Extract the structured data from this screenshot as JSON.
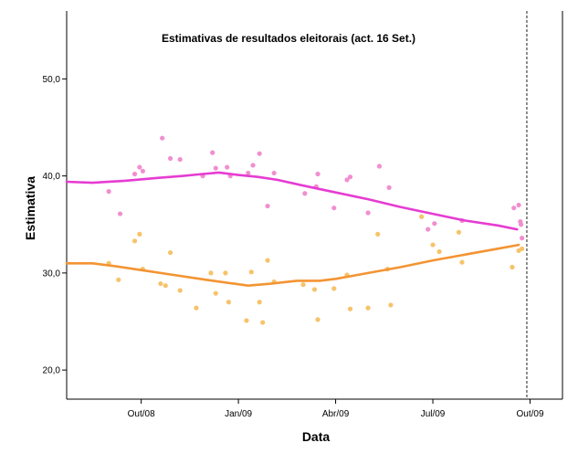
{
  "chart_data": {
    "type": "scatter",
    "title": "Estimativas de resultados eleitorais (act. 16 Set.)",
    "xlabel": "Data",
    "ylabel": "Estimativa",
    "x_domain_months": [
      6.7,
      22.0
    ],
    "ylim": [
      17.0,
      57.0
    ],
    "x_ticks": [
      {
        "label": "Out/08",
        "month": 9
      },
      {
        "label": "Jan/09",
        "month": 12
      },
      {
        "label": "Abr/09",
        "month": 15
      },
      {
        "label": "Jul/09",
        "month": 18
      },
      {
        "label": "Out/09",
        "month": 21
      }
    ],
    "y_ticks": [
      {
        "label": "20,0",
        "value": 20
      },
      {
        "label": "30,0",
        "value": 30
      },
      {
        "label": "40,0",
        "value": 40
      },
      {
        "label": "50,0",
        "value": 50
      }
    ],
    "reference_line_month": 20.9,
    "series": [
      {
        "name": "pink",
        "color": "#e63cd2",
        "point_color": "#f08fd0",
        "points": [
          [
            8.0,
            38.4
          ],
          [
            8.35,
            36.1
          ],
          [
            8.8,
            40.2
          ],
          [
            8.95,
            40.9
          ],
          [
            9.05,
            40.5
          ],
          [
            9.65,
            43.9
          ],
          [
            9.9,
            41.8
          ],
          [
            10.2,
            41.7
          ],
          [
            10.9,
            40.0
          ],
          [
            11.2,
            42.4
          ],
          [
            11.3,
            40.8
          ],
          [
            11.65,
            40.9
          ],
          [
            11.75,
            40.0
          ],
          [
            12.3,
            40.3
          ],
          [
            12.45,
            41.1
          ],
          [
            12.65,
            42.3
          ],
          [
            12.9,
            36.9
          ],
          [
            13.1,
            40.3
          ],
          [
            14.05,
            38.2
          ],
          [
            14.4,
            38.9
          ],
          [
            14.45,
            40.2
          ],
          [
            14.95,
            36.7
          ],
          [
            15.35,
            39.6
          ],
          [
            15.45,
            39.9
          ],
          [
            16.0,
            36.2
          ],
          [
            16.35,
            41.0
          ],
          [
            16.65,
            38.8
          ],
          [
            17.85,
            34.5
          ],
          [
            18.05,
            35.1
          ],
          [
            18.9,
            35.4
          ],
          [
            20.5,
            36.7
          ],
          [
            20.65,
            37.0
          ],
          [
            20.7,
            35.3
          ],
          [
            20.72,
            35.0
          ],
          [
            20.75,
            33.6
          ]
        ],
        "trend": [
          [
            6.7,
            39.4
          ],
          [
            7.5,
            39.3
          ],
          [
            8.5,
            39.5
          ],
          [
            9.5,
            39.8
          ],
          [
            10.3,
            40.0
          ],
          [
            10.9,
            40.2
          ],
          [
            11.4,
            40.35
          ],
          [
            12.0,
            40.1
          ],
          [
            12.6,
            39.9
          ],
          [
            13.2,
            39.6
          ],
          [
            14.0,
            39.0
          ],
          [
            15.0,
            38.3
          ],
          [
            16.0,
            37.6
          ],
          [
            17.0,
            36.8
          ],
          [
            18.0,
            36.1
          ],
          [
            19.0,
            35.4
          ],
          [
            20.0,
            34.9
          ],
          [
            20.6,
            34.5
          ]
        ]
      },
      {
        "name": "orange",
        "color": "#f39433",
        "point_color": "#f6c36a",
        "points": [
          [
            8.0,
            31.0
          ],
          [
            8.3,
            29.3
          ],
          [
            8.8,
            33.3
          ],
          [
            8.95,
            34.0
          ],
          [
            9.05,
            30.4
          ],
          [
            9.6,
            28.9
          ],
          [
            9.75,
            28.7
          ],
          [
            9.9,
            32.1
          ],
          [
            10.2,
            28.2
          ],
          [
            10.7,
            26.4
          ],
          [
            11.15,
            30.0
          ],
          [
            11.3,
            27.9
          ],
          [
            11.6,
            30.0
          ],
          [
            11.7,
            27.0
          ],
          [
            12.25,
            25.1
          ],
          [
            12.4,
            30.1
          ],
          [
            12.65,
            27.0
          ],
          [
            12.75,
            24.9
          ],
          [
            12.9,
            31.3
          ],
          [
            13.1,
            29.1
          ],
          [
            14.0,
            28.8
          ],
          [
            14.35,
            28.3
          ],
          [
            14.45,
            25.2
          ],
          [
            14.95,
            28.4
          ],
          [
            15.35,
            29.8
          ],
          [
            15.45,
            26.3
          ],
          [
            16.0,
            26.4
          ],
          [
            16.3,
            34.0
          ],
          [
            16.6,
            30.4
          ],
          [
            16.7,
            26.7
          ],
          [
            17.65,
            35.8
          ],
          [
            18.0,
            32.9
          ],
          [
            18.2,
            32.2
          ],
          [
            18.8,
            34.2
          ],
          [
            18.9,
            31.1
          ],
          [
            20.45,
            30.6
          ],
          [
            20.65,
            32.3
          ],
          [
            20.75,
            32.5
          ]
        ],
        "trend": [
          [
            6.7,
            31.0
          ],
          [
            7.5,
            31.0
          ],
          [
            8.2,
            30.7
          ],
          [
            9.0,
            30.3
          ],
          [
            10.0,
            29.8
          ],
          [
            11.0,
            29.3
          ],
          [
            12.3,
            28.7
          ],
          [
            13.0,
            28.9
          ],
          [
            13.8,
            29.2
          ],
          [
            14.5,
            29.2
          ],
          [
            15.0,
            29.4
          ],
          [
            16.0,
            30.0
          ],
          [
            17.0,
            30.6
          ],
          [
            18.0,
            31.3
          ],
          [
            19.0,
            31.9
          ],
          [
            20.0,
            32.5
          ],
          [
            20.65,
            32.9
          ]
        ]
      }
    ]
  }
}
